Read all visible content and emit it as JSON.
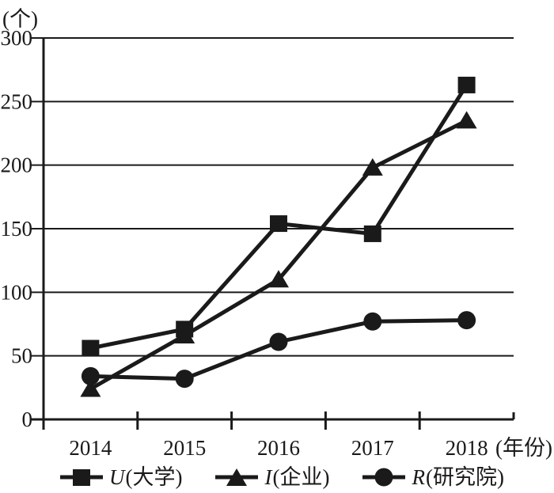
{
  "figure": {
    "background": "#ffffff",
    "ink": "#1a1a1a"
  },
  "chart_data": {
    "type": "line",
    "title": "",
    "y_unit": "(个)",
    "x_unit": "(年份)",
    "categories": [
      "2014",
      "2015",
      "2016",
      "2017",
      "2018"
    ],
    "y_tick_labels": [
      "0",
      "50",
      "100",
      "150",
      "200",
      "250",
      "300"
    ],
    "ylim": [
      0,
      300
    ],
    "y_tick_step": 50,
    "grid": true,
    "legend_position": "bottom",
    "series": [
      {
        "name": "U(大学)",
        "symbol": "U",
        "label_rest": "(大学)",
        "marker": "square",
        "color": "#1a1a1a",
        "values": [
          56,
          71,
          154,
          146,
          263
        ]
      },
      {
        "name": "I(企业)",
        "symbol": "I",
        "label_rest": "(企业)",
        "marker": "triangle",
        "color": "#1a1a1a",
        "values": [
          24,
          66,
          110,
          198,
          235
        ]
      },
      {
        "name": "R(研究院)",
        "symbol": "R",
        "label_rest": "(研究院)",
        "marker": "circle",
        "color": "#1a1a1a",
        "values": [
          34,
          32,
          61,
          77,
          78
        ]
      }
    ]
  }
}
